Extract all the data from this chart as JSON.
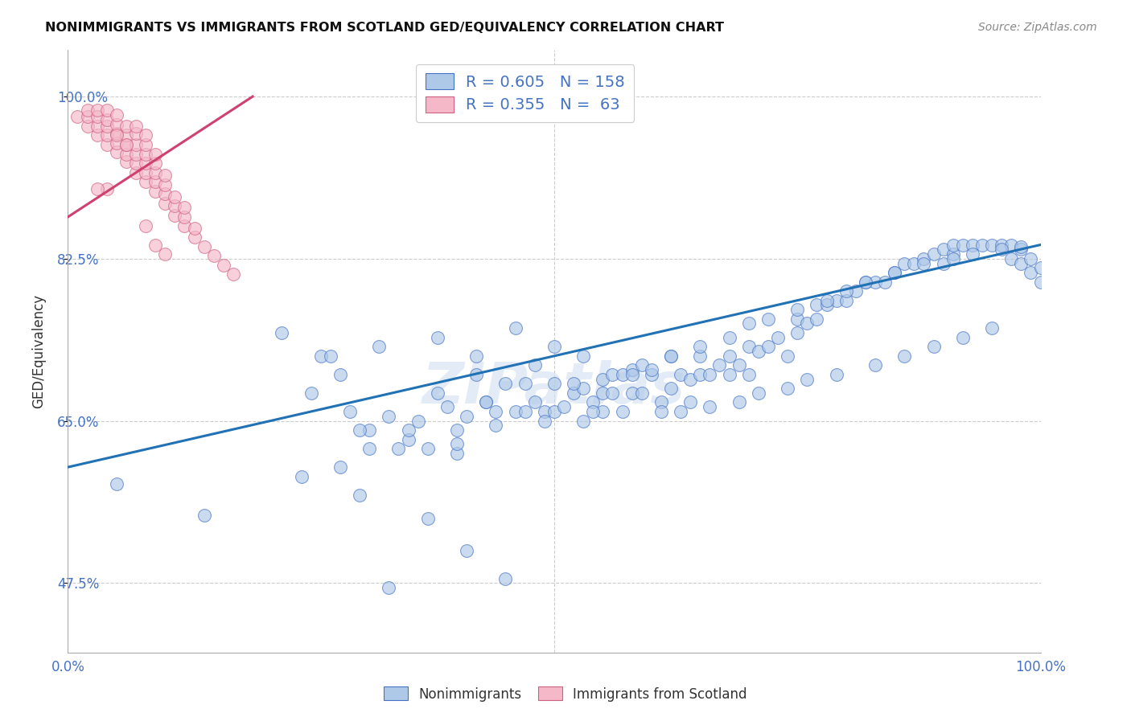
{
  "title": "NONIMMIGRANTS VS IMMIGRANTS FROM SCOTLAND GED/EQUIVALENCY CORRELATION CHART",
  "source": "Source: ZipAtlas.com",
  "ylabel": "GED/Equivalency",
  "xlim": [
    0.0,
    1.0
  ],
  "ylim": [
    0.4,
    1.05
  ],
  "background_color": "#ffffff",
  "grid_color": "#cccccc",
  "blue_fill": "#aec8e8",
  "blue_edge": "#4472c4",
  "pink_fill": "#f4b8c8",
  "pink_edge": "#d06080",
  "blue_line_color": "#2171b5",
  "pink_line_color": "#d04070",
  "legend_R_blue": "0.605",
  "legend_N_blue": "158",
  "legend_R_pink": "0.355",
  "legend_N_pink": " 63",
  "ytick_vals": [
    0.475,
    0.65,
    0.825,
    1.0
  ],
  "ytick_labels": [
    "47.5%",
    "65.0%",
    "82.5%",
    "100.0%"
  ],
  "xtick_vals": [
    0.0,
    1.0
  ],
  "xtick_labels": [
    "0.0%",
    "100.0%"
  ],
  "blue_line_x": [
    0.0,
    1.0
  ],
  "blue_line_y": [
    0.6,
    0.84
  ],
  "pink_line_x": [
    0.0,
    0.19
  ],
  "pink_line_y": [
    0.87,
    1.0
  ],
  "blue_x": [
    0.05,
    0.14,
    0.22,
    0.26,
    0.28,
    0.29,
    0.31,
    0.33,
    0.35,
    0.37,
    0.38,
    0.39,
    0.4,
    0.4,
    0.41,
    0.42,
    0.43,
    0.44,
    0.45,
    0.46,
    0.47,
    0.48,
    0.49,
    0.5,
    0.5,
    0.51,
    0.52,
    0.53,
    0.53,
    0.54,
    0.55,
    0.55,
    0.56,
    0.57,
    0.58,
    0.58,
    0.59,
    0.59,
    0.6,
    0.61,
    0.62,
    0.62,
    0.63,
    0.64,
    0.64,
    0.65,
    0.65,
    0.66,
    0.67,
    0.68,
    0.68,
    0.69,
    0.7,
    0.7,
    0.71,
    0.72,
    0.73,
    0.74,
    0.75,
    0.75,
    0.76,
    0.77,
    0.77,
    0.78,
    0.79,
    0.8,
    0.81,
    0.82,
    0.83,
    0.84,
    0.85,
    0.86,
    0.87,
    0.88,
    0.89,
    0.9,
    0.9,
    0.91,
    0.91,
    0.92,
    0.93,
    0.94,
    0.95,
    0.96,
    0.97,
    0.97,
    0.98,
    0.98,
    0.99,
    0.99,
    1.0,
    1.0,
    0.27,
    0.32,
    0.38,
    0.42,
    0.46,
    0.5,
    0.3,
    0.35,
    0.52,
    0.55,
    0.58,
    0.6,
    0.62,
    0.65,
    0.68,
    0.7,
    0.72,
    0.75,
    0.78,
    0.8,
    0.82,
    0.85,
    0.88,
    0.91,
    0.93,
    0.96,
    0.98,
    0.25,
    0.43,
    0.47,
    0.48,
    0.53,
    0.56,
    0.31,
    0.36,
    0.4,
    0.44,
    0.49,
    0.54,
    0.57,
    0.61,
    0.63,
    0.66,
    0.69,
    0.71,
    0.74,
    0.76,
    0.79,
    0.83,
    0.86,
    0.89,
    0.92,
    0.95,
    0.28,
    0.34,
    0.24,
    0.3,
    0.37,
    0.41,
    0.45,
    0.33
  ],
  "blue_y": [
    0.582,
    0.548,
    0.745,
    0.72,
    0.7,
    0.66,
    0.64,
    0.655,
    0.63,
    0.62,
    0.68,
    0.665,
    0.64,
    0.615,
    0.655,
    0.7,
    0.67,
    0.66,
    0.69,
    0.66,
    0.66,
    0.67,
    0.66,
    0.66,
    0.69,
    0.665,
    0.68,
    0.65,
    0.685,
    0.67,
    0.695,
    0.66,
    0.7,
    0.7,
    0.705,
    0.68,
    0.68,
    0.71,
    0.7,
    0.67,
    0.685,
    0.72,
    0.7,
    0.67,
    0.695,
    0.7,
    0.72,
    0.7,
    0.71,
    0.7,
    0.72,
    0.71,
    0.73,
    0.7,
    0.725,
    0.73,
    0.74,
    0.72,
    0.745,
    0.76,
    0.755,
    0.76,
    0.775,
    0.775,
    0.78,
    0.78,
    0.79,
    0.8,
    0.8,
    0.8,
    0.81,
    0.82,
    0.82,
    0.825,
    0.83,
    0.835,
    0.82,
    0.83,
    0.84,
    0.84,
    0.84,
    0.84,
    0.84,
    0.84,
    0.84,
    0.825,
    0.835,
    0.82,
    0.825,
    0.81,
    0.815,
    0.8,
    0.72,
    0.73,
    0.74,
    0.72,
    0.75,
    0.73,
    0.64,
    0.64,
    0.69,
    0.68,
    0.7,
    0.705,
    0.72,
    0.73,
    0.74,
    0.755,
    0.76,
    0.77,
    0.78,
    0.79,
    0.8,
    0.81,
    0.82,
    0.825,
    0.83,
    0.835,
    0.838,
    0.68,
    0.67,
    0.69,
    0.71,
    0.72,
    0.68,
    0.62,
    0.65,
    0.625,
    0.645,
    0.65,
    0.66,
    0.66,
    0.66,
    0.66,
    0.665,
    0.67,
    0.68,
    0.685,
    0.695,
    0.7,
    0.71,
    0.72,
    0.73,
    0.74,
    0.75,
    0.6,
    0.62,
    0.59,
    0.57,
    0.545,
    0.51,
    0.48,
    0.47
  ],
  "pink_x": [
    0.01,
    0.02,
    0.02,
    0.02,
    0.03,
    0.03,
    0.03,
    0.03,
    0.04,
    0.04,
    0.04,
    0.04,
    0.04,
    0.05,
    0.05,
    0.05,
    0.05,
    0.05,
    0.06,
    0.06,
    0.06,
    0.06,
    0.06,
    0.07,
    0.07,
    0.07,
    0.07,
    0.07,
    0.08,
    0.08,
    0.08,
    0.08,
    0.08,
    0.08,
    0.09,
    0.09,
    0.09,
    0.09,
    0.09,
    0.1,
    0.1,
    0.1,
    0.1,
    0.11,
    0.11,
    0.11,
    0.12,
    0.12,
    0.12,
    0.13,
    0.13,
    0.14,
    0.15,
    0.16,
    0.17,
    0.07,
    0.06,
    0.05,
    0.04,
    0.03,
    0.08,
    0.09,
    0.1
  ],
  "pink_y": [
    0.978,
    0.968,
    0.978,
    0.985,
    0.958,
    0.968,
    0.978,
    0.985,
    0.948,
    0.958,
    0.968,
    0.975,
    0.985,
    0.94,
    0.95,
    0.96,
    0.97,
    0.98,
    0.93,
    0.938,
    0.948,
    0.958,
    0.968,
    0.918,
    0.928,
    0.938,
    0.948,
    0.96,
    0.908,
    0.918,
    0.928,
    0.938,
    0.948,
    0.958,
    0.898,
    0.908,
    0.918,
    0.928,
    0.938,
    0.885,
    0.895,
    0.905,
    0.915,
    0.872,
    0.882,
    0.892,
    0.86,
    0.87,
    0.88,
    0.848,
    0.858,
    0.838,
    0.828,
    0.818,
    0.808,
    0.968,
    0.948,
    0.958,
    0.9,
    0.9,
    0.86,
    0.84,
    0.83
  ]
}
